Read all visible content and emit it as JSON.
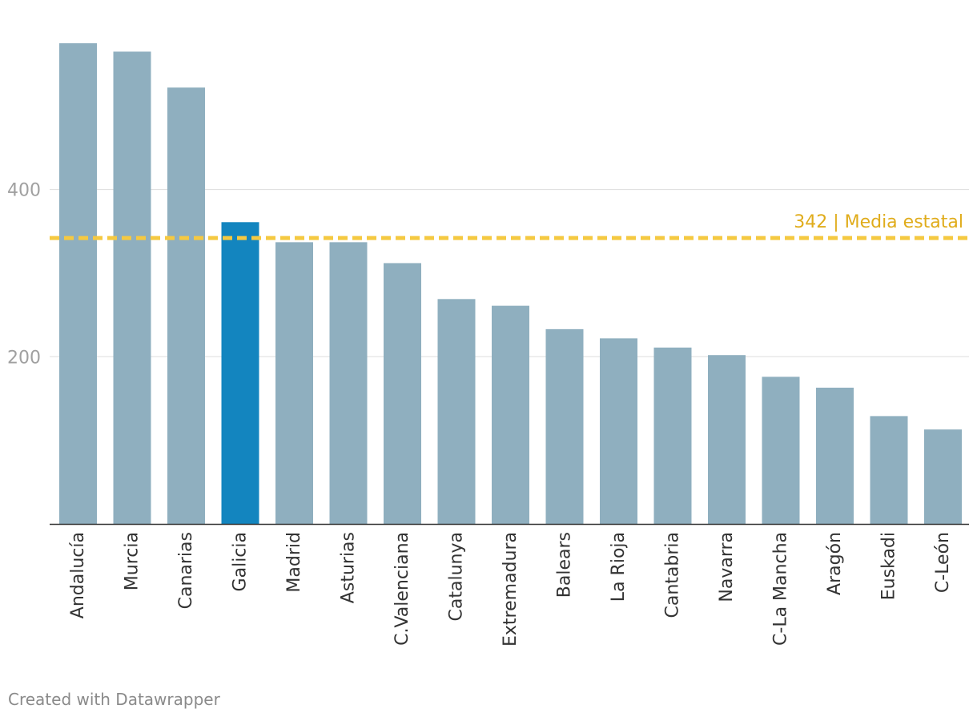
{
  "chart_data": {
    "type": "bar",
    "title": "",
    "xlabel": "",
    "ylabel": "",
    "ylim": [
      0,
      575
    ],
    "yticks": [
      200,
      400
    ],
    "grid": true,
    "categories": [
      "Andalucía",
      "Murcia",
      "Canarias",
      "Galicia",
      "Madrid",
      "Asturias",
      "C.Valenciana",
      "Catalunya",
      "Extremadura",
      "Balears",
      "La Rioja",
      "Cantabria",
      "Navarra",
      "C-La Mancha",
      "Aragón",
      "Euskadi",
      "C-León"
    ],
    "values": [
      575,
      565,
      522,
      361,
      337,
      337,
      312,
      269,
      261,
      233,
      222,
      211,
      202,
      176,
      163,
      129,
      113
    ],
    "highlight": "Galicia",
    "reference_line": {
      "value": 342,
      "label": "342 | Media estatal"
    }
  },
  "colors": {
    "bar": "#8fafbf",
    "highlight": "#1385bf",
    "reference": "#f5c941",
    "reference_text": "#e0ac1b",
    "grid": "#dddddd",
    "axis": "#333333",
    "tick_text": "#a0a0a0",
    "label_text": "#333333"
  },
  "credit": "Created with Datawrapper"
}
